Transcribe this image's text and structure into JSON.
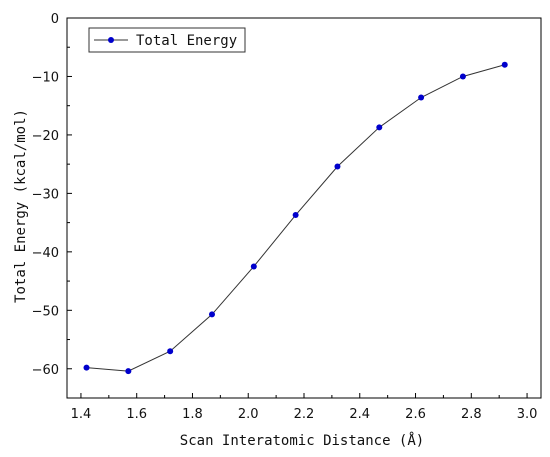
{
  "chart_data": {
    "type": "line",
    "title": "",
    "xlabel": "Scan Interatomic Distance (Å)",
    "ylabel": "Total Energy (kcal/mol)",
    "xlim": [
      1.35,
      3.05
    ],
    "ylim": [
      -65,
      0
    ],
    "xticks": [
      1.4,
      1.6,
      1.8,
      2.0,
      2.2,
      2.4,
      2.6,
      2.8,
      3.0
    ],
    "xtick_labels": [
      "1.4",
      "1.6",
      "1.8",
      "2.0",
      "2.2",
      "2.4",
      "2.6",
      "2.8",
      "3.0"
    ],
    "yticks": [
      0,
      -10,
      -20,
      -30,
      -40,
      -50,
      -60
    ],
    "ytick_labels": [
      "0",
      "−10",
      "−20",
      "−30",
      "−40",
      "−50",
      "−60"
    ],
    "grid": false,
    "legend_position": "top-left",
    "series": [
      {
        "name": "Total Energy",
        "color": "#0000cc",
        "line_color": "#333333",
        "marker": "circle",
        "x": [
          1.42,
          1.57,
          1.72,
          1.87,
          2.02,
          2.17,
          2.32,
          2.47,
          2.62,
          2.77,
          2.92
        ],
        "y": [
          -59.8,
          -60.4,
          -57.0,
          -50.7,
          -42.5,
          -33.7,
          -25.4,
          -18.7,
          -13.6,
          -10.0,
          -8.0
        ]
      }
    ]
  }
}
